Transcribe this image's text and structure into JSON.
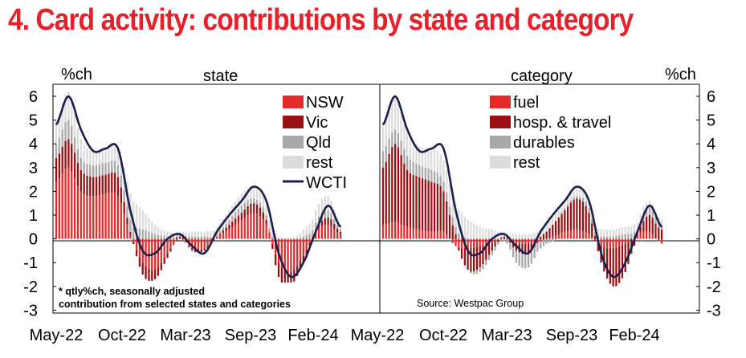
{
  "title": "4. Card activity: contributions by state and category",
  "colors": {
    "title": "#e8202a",
    "series1": "#e52a2a",
    "series2": "#9a0f12",
    "series3": "#a8a8a8",
    "series4": "#dcdcdc",
    "line": "#1c1f4d"
  },
  "chart_data": [
    {
      "type": "bar",
      "panel": "state",
      "panel_label": "state",
      "yunit": "%ch",
      "ylim": [
        -3,
        6
      ],
      "yticks": [
        "6",
        "5",
        "4",
        "3",
        "2",
        "1",
        "0",
        "-1",
        "-2",
        "-3"
      ],
      "xticks": [
        "May-22",
        "Oct-22",
        "Mar-23",
        "Sep-23",
        "Feb-24"
      ],
      "x": [
        "May-22",
        "Jun-22",
        "Jul-22",
        "Aug-22",
        "Sep-22",
        "Oct-22",
        "Nov-22",
        "Dec-22",
        "Jan-23",
        "Feb-23",
        "Mar-23",
        "Apr-23",
        "May-23",
        "Jun-23",
        "Jul-23",
        "Aug-23",
        "Sep-23",
        "Oct-23",
        "Nov-23",
        "Dec-23",
        "Jan-24",
        "Feb-24",
        "Mar-24",
        "Apr-24"
      ],
      "series": [
        {
          "name": "NSW",
          "values": [
            2.4,
            3.0,
            2.0,
            1.8,
            1.9,
            1.8,
            0.2,
            -1.0,
            -1.3,
            -0.6,
            0.0,
            -0.4,
            -0.4,
            0.1,
            0.4,
            0.8,
            1.1,
            0.6,
            -1.0,
            -1.4,
            -0.7,
            0.3,
            0.6,
            0.2
          ]
        },
        {
          "name": "Vic",
          "values": [
            1.0,
            1.2,
            0.9,
            0.8,
            0.8,
            0.8,
            0.1,
            -0.5,
            -0.4,
            -0.2,
            0.1,
            -0.1,
            -0.1,
            0.0,
            0.2,
            0.3,
            0.4,
            0.2,
            -0.6,
            -0.5,
            -0.3,
            0.1,
            0.3,
            0.1
          ]
        },
        {
          "name": "Qld",
          "values": [
            0.6,
            0.8,
            0.5,
            0.5,
            0.5,
            0.5,
            0.5,
            0.4,
            0.2,
            0.1,
            0.1,
            0.1,
            0.1,
            0.1,
            0.2,
            0.3,
            0.2,
            0.2,
            0.0,
            -0.1,
            0.1,
            0.3,
            0.3,
            0.1
          ]
        },
        {
          "name": "rest",
          "values": [
            1.0,
            1.2,
            0.8,
            0.6,
            0.7,
            0.7,
            1.1,
            0.8,
            0.4,
            0.2,
            0.1,
            0.2,
            0.2,
            0.3,
            0.4,
            0.5,
            0.5,
            0.4,
            0.1,
            0.0,
            0.3,
            0.5,
            0.6,
            0.2
          ]
        }
      ],
      "line": {
        "name": "WCTI",
        "values": [
          4.8,
          6.0,
          4.6,
          3.7,
          3.8,
          3.8,
          1.2,
          -0.5,
          -0.6,
          0.0,
          0.2,
          -0.3,
          -0.6,
          0.3,
          1.0,
          1.6,
          2.2,
          1.6,
          -0.6,
          -1.6,
          -1.0,
          0.3,
          1.4,
          0.5
        ]
      },
      "footnote": [
        "* qtly%ch, seasonally adjusted",
        "contribution from selected states and categories"
      ]
    },
    {
      "type": "bar",
      "panel": "category",
      "panel_label": "category",
      "yunit": "%ch",
      "ylim": [
        -3,
        6
      ],
      "yticks": [
        "6",
        "5",
        "4",
        "3",
        "2",
        "1",
        "0",
        "-1",
        "-2",
        "-3"
      ],
      "xticks": [
        "May-22",
        "Oct-22",
        "Mar-23",
        "Sep-23",
        "Feb-24"
      ],
      "x": [
        "May-22",
        "Jun-22",
        "Jul-22",
        "Aug-22",
        "Sep-22",
        "Oct-22",
        "Nov-22",
        "Dec-22",
        "Jan-23",
        "Feb-23",
        "Mar-23",
        "Apr-23",
        "May-23",
        "Jun-23",
        "Jul-23",
        "Aug-23",
        "Sep-23",
        "Oct-23",
        "Nov-23",
        "Dec-23",
        "Jan-24",
        "Feb-24",
        "Mar-24",
        "Apr-24"
      ],
      "series": [
        {
          "name": "fuel",
          "values": [
            0.6,
            0.7,
            0.5,
            0.4,
            0.3,
            0.3,
            -0.3,
            -0.4,
            -0.3,
            -0.2,
            0.0,
            -0.2,
            -0.2,
            -0.1,
            0.1,
            0.3,
            0.4,
            0.2,
            -0.3,
            -0.4,
            -0.2,
            0.2,
            0.3,
            -0.2
          ]
        },
        {
          "name": "hosp. & travel",
          "values": [
            2.4,
            3.3,
            2.4,
            2.2,
            2.1,
            1.7,
            0.2,
            -0.9,
            -0.9,
            -0.3,
            0.1,
            -0.3,
            -0.4,
            0.1,
            0.5,
            0.9,
            1.3,
            0.9,
            -0.7,
            -1.6,
            -1.2,
            0.0,
            0.7,
            0.4
          ]
        },
        {
          "name": "durables",
          "values": [
            0.7,
            0.6,
            0.6,
            0.5,
            0.5,
            0.4,
            0.3,
            0.0,
            -0.2,
            -0.2,
            -0.1,
            -0.5,
            -0.6,
            -0.3,
            -0.1,
            0.1,
            0.1,
            0.2,
            0.1,
            0.1,
            0.2,
            0.2,
            0.3,
            0.2
          ]
        },
        {
          "name": "rest",
          "values": [
            1.2,
            1.3,
            1.0,
            0.8,
            0.9,
            0.9,
            1.0,
            0.8,
            0.5,
            0.4,
            0.2,
            0.2,
            0.2,
            0.3,
            0.3,
            0.3,
            0.4,
            0.3,
            0.3,
            0.3,
            0.3,
            0.3,
            0.3,
            0.2
          ]
        }
      ],
      "line": {
        "name": "WCTI",
        "values": [
          4.8,
          6.0,
          4.6,
          3.7,
          3.8,
          3.8,
          1.2,
          -0.5,
          -0.6,
          0.0,
          0.2,
          -0.3,
          -0.6,
          0.3,
          1.0,
          1.6,
          2.2,
          1.6,
          -0.6,
          -1.6,
          -1.0,
          0.3,
          1.4,
          0.5
        ]
      },
      "source": "Source: Westpac Group"
    }
  ]
}
